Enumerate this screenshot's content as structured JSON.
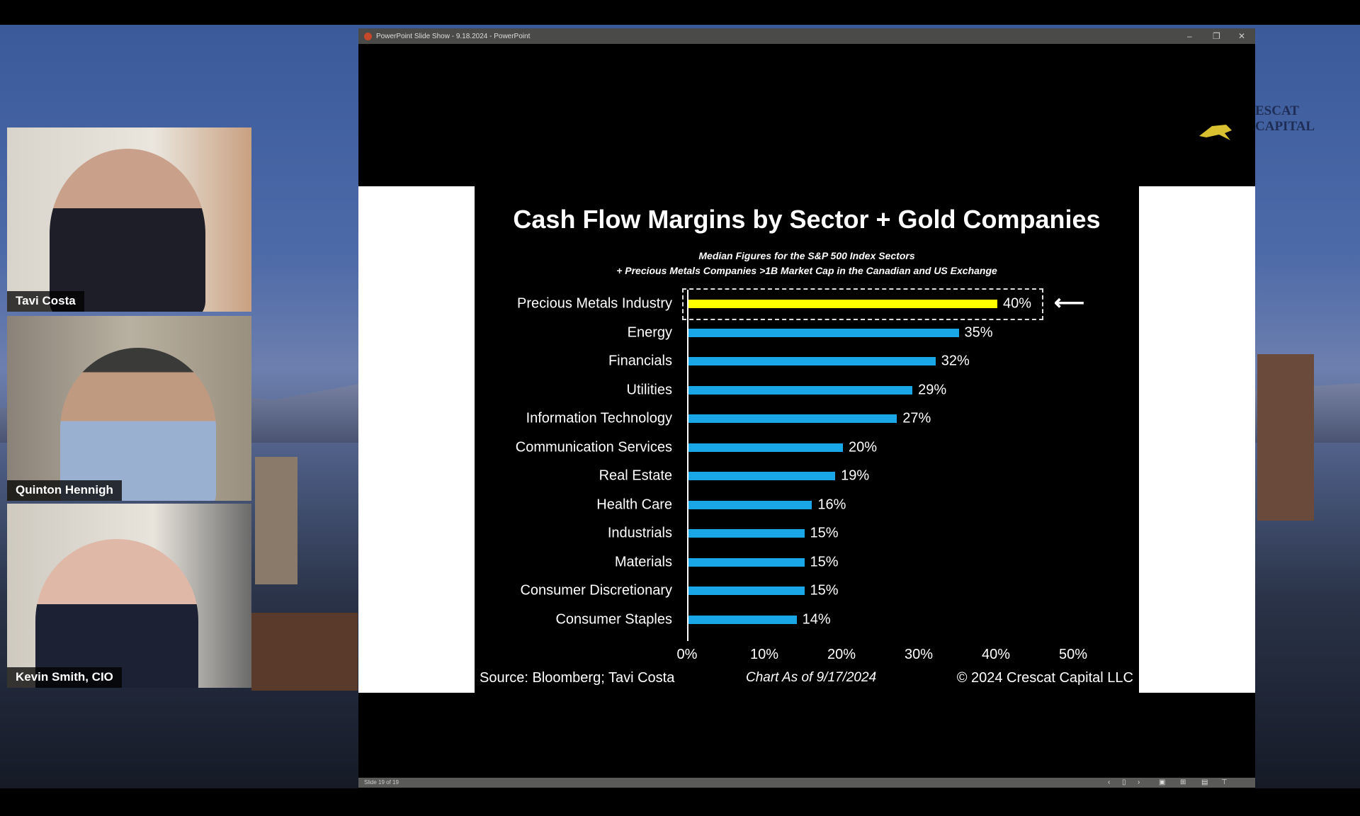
{
  "window": {
    "title": "PowerPoint Slide Show  -  9.18.2024 - PowerPoint",
    "status": "Slide 19 of 19"
  },
  "participants": [
    {
      "name": "Tavi Costa"
    },
    {
      "name": "Quinton Hennigh"
    },
    {
      "name": "Kevin Smith, CIO"
    }
  ],
  "logo": {
    "text": "ESCAT CAPITAL"
  },
  "chart_data": {
    "type": "bar",
    "orientation": "horizontal",
    "title": "Cash Flow Margins by Sector + Gold Companies",
    "subtitle": [
      "Median Figures for the S&P 500 Index Sectors",
      "+ Precious Metals Companies >1B Market Cap in the Canadian and US Exchange"
    ],
    "categories": [
      "Precious Metals Industry",
      "Energy",
      "Financials",
      "Utilities",
      "Information Technology",
      "Communication Services",
      "Real Estate",
      "Health Care",
      "Industrials",
      "Materials",
      "Consumer Discretionary",
      "Consumer Staples"
    ],
    "values": [
      40,
      35,
      32,
      29,
      27,
      20,
      19,
      16,
      15,
      15,
      15,
      14
    ],
    "labels": [
      "40%",
      "35%",
      "32%",
      "29%",
      "27%",
      "20%",
      "19%",
      "16%",
      "15%",
      "15%",
      "15%",
      "14%"
    ],
    "highlight_index": 0,
    "colors": {
      "highlight": "#ffff00",
      "default": "#1aa7e8"
    },
    "xticks": [
      "0%",
      "10%",
      "20%",
      "30%",
      "40%",
      "50%"
    ],
    "xlim": [
      0,
      50
    ],
    "source": "Source: Bloomberg; Tavi Costa",
    "date_note": "Chart As of 9/17/2024",
    "copyright": "© 2024 Crescat Capital LLC"
  }
}
